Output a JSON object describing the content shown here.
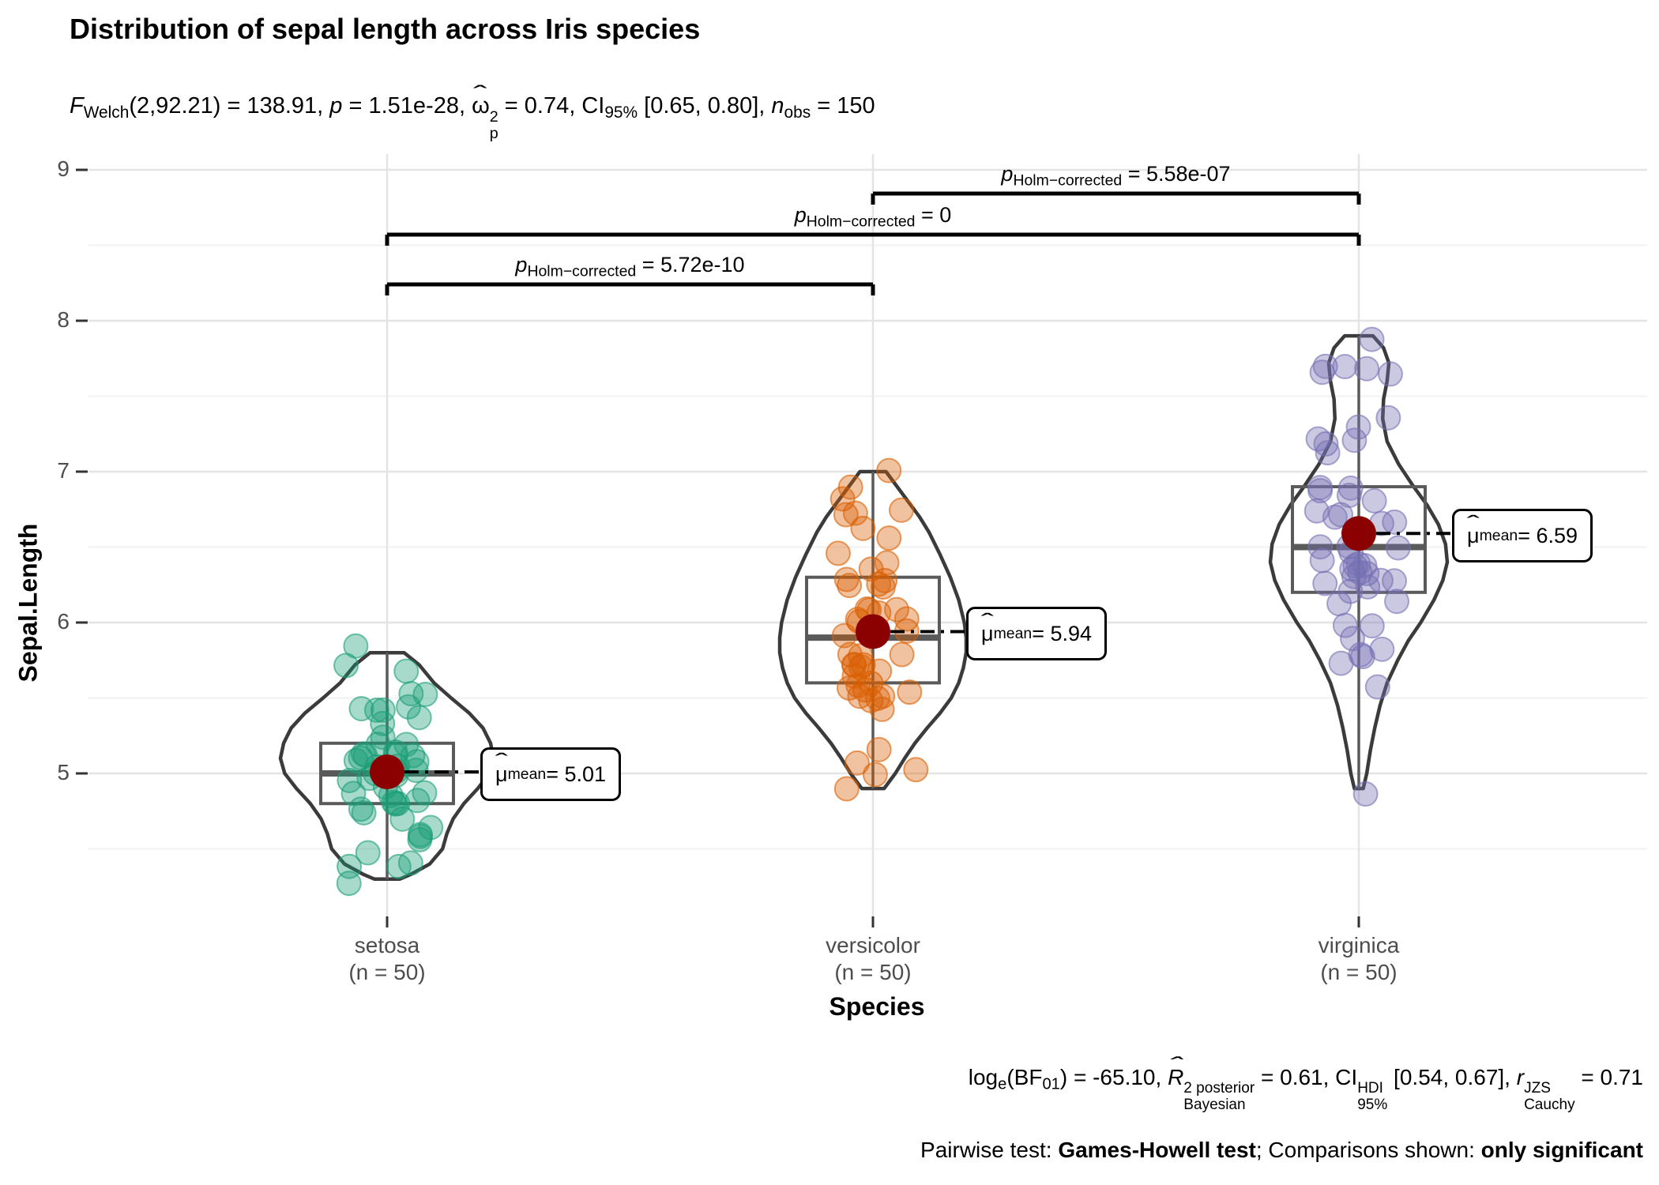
{
  "title": "Distribution of sepal length across Iris species",
  "rich": {
    "subtitle": [
      {
        "t": "F",
        "i": 1
      },
      {
        "t": "Welch",
        "sub": 1
      },
      {
        "t": "(2,92.21) = 138.91, "
      },
      {
        "t": "p",
        "i": 1
      },
      {
        "t": " = 1.51e-28, "
      },
      {
        "t": "ω",
        "hat": 1
      },
      {
        "stack": [
          "2",
          "p"
        ]
      },
      {
        "t": " = 0.74, CI"
      },
      {
        "t": "95%",
        "sub": 1
      },
      {
        "t": " [0.65, 0.80], "
      },
      {
        "t": "n",
        "i": 1
      },
      {
        "t": "obs",
        "sub": 1
      },
      {
        "t": " = 150"
      }
    ],
    "caption1": [
      {
        "t": "log"
      },
      {
        "t": "e",
        "sub": 1
      },
      {
        "t": "(BF"
      },
      {
        "t": "01",
        "sub": 1
      },
      {
        "t": ") = -65.10, "
      },
      {
        "t": "R",
        "i": 1,
        "hat": 1
      },
      {
        "stack": [
          "2 posterior",
          "Bayesian"
        ]
      },
      {
        "t": " = 0.61, CI"
      },
      {
        "stack": [
          "HDI",
          "95%"
        ]
      },
      {
        "t": " [0.54, 0.67], "
      },
      {
        "t": "r",
        "i": 1
      },
      {
        "stack": [
          "JZS",
          "Cauchy"
        ]
      },
      {
        "t": " = 0.71"
      }
    ],
    "caption2": [
      {
        "t": "Pairwise test: "
      },
      {
        "t": "Games-Howell test",
        "b": 1
      },
      {
        "t": "; Comparisons shown: "
      },
      {
        "t": "only significant",
        "b": 1
      }
    ],
    "comparison_labels": [
      [
        {
          "t": "p",
          "i": 1
        },
        {
          "t": "Holm−corrected",
          "sub": 1
        },
        {
          "t": " = 5.58e-07"
        }
      ],
      [
        {
          "t": "p",
          "i": 1
        },
        {
          "t": "Holm−corrected",
          "sub": 1
        },
        {
          "t": " = 0"
        }
      ],
      [
        {
          "t": "p",
          "i": 1
        },
        {
          "t": "Holm−corrected",
          "sub": 1
        },
        {
          "t": " = 5.72e-10"
        }
      ]
    ],
    "mean_labels": [
      [
        {
          "t": "μ",
          "hat": 1
        },
        {
          "t": "mean",
          "sub": 1
        },
        {
          "t": " = 5.01"
        }
      ],
      [
        {
          "t": "μ",
          "hat": 1
        },
        {
          "t": "mean",
          "sub": 1
        },
        {
          "t": " = 5.94"
        }
      ],
      [
        {
          "t": "μ",
          "hat": 1
        },
        {
          "t": "mean",
          "sub": 1
        },
        {
          "t": " = 6.59"
        }
      ]
    ]
  },
  "chart_data": {
    "type": "violin-box-jitter",
    "title": "Distribution of sepal length across Iris species",
    "subtitle_plain": "F Welch(2,92.21) = 138.91, p = 1.51e-28, ω²p = 0.74, CI 95% [0.65, 0.80], n obs = 150",
    "caption_plain": "log e(BF 01) = -65.10, R² posterior Bayesian = 0.61, CI HDI 95% [0.54, 0.67], r JZS Cauchy = 0.71",
    "caption2_plain": "Pairwise test: Games-Howell test; Comparisons shown: only significant",
    "xlabel": "Species",
    "ylabel": "Sepal.Length",
    "ylim": [
      4.05,
      9.01
    ],
    "y_ticks": [
      5,
      6,
      7,
      8,
      9
    ],
    "y_minor_ticks": [
      4.5,
      5.5,
      6.5,
      7.5,
      8.5
    ],
    "grid": true,
    "categories": [
      "setosa",
      "versicolor",
      "virginica"
    ],
    "n_labels": [
      "(n = 50)",
      "(n = 50)",
      "(n = 50)"
    ],
    "mean_point_color": "#8B0000",
    "series": [
      {
        "name": "setosa",
        "color": "#1B9E77",
        "n": 50,
        "mean": 5.01,
        "median": 5.0,
        "q1": 4.8,
        "q3": 5.2,
        "min": 4.3,
        "max": 5.8,
        "values": [
          5.1,
          4.9,
          4.7,
          4.6,
          5.0,
          5.4,
          4.6,
          5.0,
          4.4,
          4.9,
          5.4,
          4.8,
          4.8,
          4.3,
          5.8,
          5.7,
          5.4,
          5.1,
          5.7,
          5.1,
          5.4,
          5.1,
          4.6,
          5.1,
          4.8,
          5.0,
          5.0,
          5.2,
          5.2,
          4.7,
          4.8,
          5.4,
          5.2,
          5.5,
          4.9,
          5.0,
          5.5,
          4.9,
          4.4,
          5.1,
          5.0,
          4.5,
          4.4,
          5.0,
          5.1,
          4.8,
          5.1,
          4.6,
          5.3,
          5.0
        ],
        "violin_profile": [
          [
            5.8,
            0.16
          ],
          [
            5.72,
            0.3
          ],
          [
            5.6,
            0.44
          ],
          [
            5.5,
            0.6
          ],
          [
            5.4,
            0.77
          ],
          [
            5.3,
            0.9
          ],
          [
            5.2,
            0.97
          ],
          [
            5.1,
            1.0
          ],
          [
            5.0,
            0.96
          ],
          [
            4.9,
            0.85
          ],
          [
            4.8,
            0.72
          ],
          [
            4.7,
            0.62
          ],
          [
            4.6,
            0.56
          ],
          [
            4.5,
            0.52
          ],
          [
            4.4,
            0.4
          ],
          [
            4.33,
            0.22
          ],
          [
            4.3,
            0.12
          ]
        ]
      },
      {
        "name": "versicolor",
        "color": "#D95F02",
        "n": 50,
        "mean": 5.94,
        "median": 5.9,
        "q1": 5.6,
        "q3": 6.3,
        "min": 4.9,
        "max": 7.0,
        "values": [
          7.0,
          6.4,
          6.9,
          5.5,
          6.5,
          5.7,
          6.3,
          4.9,
          6.6,
          5.2,
          5.0,
          5.9,
          6.0,
          6.1,
          5.6,
          6.7,
          5.6,
          5.8,
          6.2,
          5.6,
          5.9,
          6.1,
          6.3,
          6.1,
          6.4,
          6.6,
          6.8,
          6.7,
          6.0,
          5.7,
          5.5,
          5.5,
          5.8,
          6.0,
          5.4,
          6.0,
          6.7,
          6.3,
          5.6,
          5.5,
          5.5,
          6.1,
          5.8,
          5.0,
          5.6,
          5.7,
          5.7,
          6.2,
          5.1,
          5.7
        ],
        "violin_profile": [
          [
            7.0,
            0.14
          ],
          [
            6.9,
            0.26
          ],
          [
            6.8,
            0.38
          ],
          [
            6.7,
            0.5
          ],
          [
            6.6,
            0.6
          ],
          [
            6.45,
            0.72
          ],
          [
            6.3,
            0.83
          ],
          [
            6.15,
            0.92
          ],
          [
            6.0,
            0.98
          ],
          [
            5.9,
            1.0
          ],
          [
            5.8,
            1.0
          ],
          [
            5.7,
            0.97
          ],
          [
            5.6,
            0.92
          ],
          [
            5.5,
            0.84
          ],
          [
            5.4,
            0.72
          ],
          [
            5.3,
            0.58
          ],
          [
            5.2,
            0.45
          ],
          [
            5.1,
            0.34
          ],
          [
            5.0,
            0.24
          ],
          [
            4.9,
            0.12
          ]
        ]
      },
      {
        "name": "virginica",
        "color": "#7570B3",
        "n": 50,
        "mean": 6.59,
        "median": 6.5,
        "q1": 6.2,
        "q3": 6.9,
        "min": 4.9,
        "max": 7.9,
        "values": [
          6.3,
          5.8,
          7.1,
          6.3,
          6.5,
          7.6,
          4.9,
          7.3,
          6.7,
          7.2,
          6.5,
          6.4,
          6.8,
          5.7,
          5.8,
          6.4,
          6.5,
          7.7,
          7.7,
          6.0,
          6.9,
          5.6,
          7.7,
          6.3,
          6.7,
          7.2,
          6.2,
          6.1,
          6.4,
          7.2,
          7.4,
          7.9,
          6.4,
          6.3,
          6.1,
          7.7,
          6.3,
          6.4,
          6.0,
          6.9,
          6.7,
          6.9,
          5.8,
          6.8,
          6.7,
          6.7,
          6.3,
          6.5,
          6.2,
          5.9
        ],
        "violin_profile": [
          [
            7.9,
            0.16
          ],
          [
            7.82,
            0.28
          ],
          [
            7.72,
            0.34
          ],
          [
            7.6,
            0.32
          ],
          [
            7.48,
            0.28
          ],
          [
            7.35,
            0.27
          ],
          [
            7.2,
            0.32
          ],
          [
            7.05,
            0.45
          ],
          [
            6.9,
            0.62
          ],
          [
            6.78,
            0.77
          ],
          [
            6.65,
            0.9
          ],
          [
            6.52,
            0.98
          ],
          [
            6.4,
            1.0
          ],
          [
            6.28,
            0.95
          ],
          [
            6.15,
            0.85
          ],
          [
            6.0,
            0.7
          ],
          [
            5.88,
            0.56
          ],
          [
            5.75,
            0.44
          ],
          [
            5.6,
            0.32
          ],
          [
            5.45,
            0.24
          ],
          [
            5.3,
            0.18
          ],
          [
            5.15,
            0.13
          ],
          [
            5.0,
            0.09
          ],
          [
            4.9,
            0.05
          ]
        ]
      }
    ],
    "comparisons": [
      {
        "groups": [
          "versicolor",
          "virginica"
        ],
        "pair": [
          1,
          2
        ],
        "p_label": "p Holm-corrected = 5.58e-07",
        "p": "5.58e-07"
      },
      {
        "groups": [
          "setosa",
          "virginica"
        ],
        "pair": [
          0,
          2
        ],
        "p_label": "p Holm-corrected = 0",
        "p": "0"
      },
      {
        "groups": [
          "setosa",
          "versicolor"
        ],
        "pair": [
          0,
          1
        ],
        "p_label": "p Holm-corrected = 5.72e-10",
        "p": "5.72e-10"
      }
    ],
    "legend": "none"
  }
}
